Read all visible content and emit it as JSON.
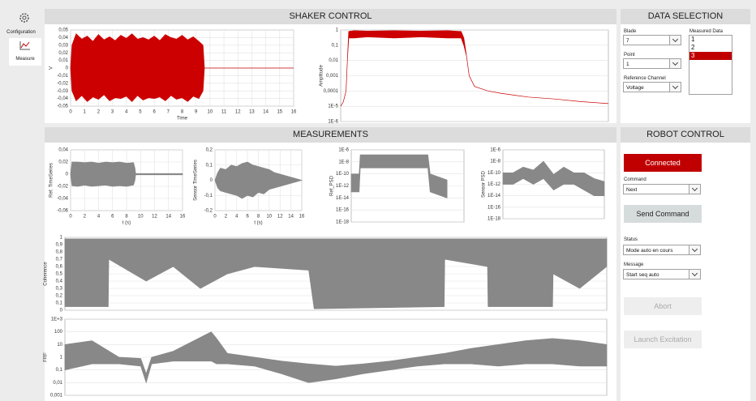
{
  "sidebar": {
    "items": [
      "Configuration",
      "Measure"
    ]
  },
  "shaker": {
    "title": "SHAKER CONTROL"
  },
  "data_selection": {
    "title": "DATA SELECTION",
    "blade": {
      "label": "Blade",
      "value": "7"
    },
    "point": {
      "label": "Point",
      "value": "1"
    },
    "reference_channel": {
      "label": "Reference Channel",
      "value": "Voltage"
    },
    "measured_data": {
      "label": "Measured Data",
      "items": [
        "1",
        "2",
        "3"
      ],
      "selected": 2
    }
  },
  "measurements": {
    "title": "MEASUREMENTS"
  },
  "robot": {
    "title": "ROBOT CONTROL",
    "connected": "Connected",
    "command": {
      "label": "Command",
      "value": "Next"
    },
    "send": "Send Command",
    "status": {
      "label": "Status",
      "value": "Mode auto en cours"
    },
    "message": {
      "label": "Message",
      "value": "Start seq auto"
    },
    "abort": "Abort",
    "launch": "Launch Excitation"
  },
  "plots": [
    {
      "ylabel": "V",
      "xlabel": "Time",
      "color": "#cc0000",
      "log": false,
      "xlim": [
        0,
        16
      ],
      "xticks": [
        0,
        1,
        2,
        3,
        4,
        5,
        6,
        7,
        8,
        9,
        10,
        11,
        12,
        13,
        14,
        15,
        16
      ],
      "ylim": [
        -0.05,
        0.05
      ],
      "yticks": [
        {
          "value": 0.05,
          "label": "0,05"
        },
        {
          "value": 0.04,
          "label": "0,04"
        },
        {
          "value": 0.03,
          "label": "0,03"
        },
        {
          "value": 0.02,
          "label": "0,02"
        },
        {
          "value": 0.01,
          "label": "0,01"
        },
        0,
        {
          "value": -0.01,
          "label": "-0,01"
        },
        {
          "value": -0.02,
          "label": "-0,02"
        },
        {
          "value": -0.03,
          "label": "-0,03"
        },
        {
          "value": -0.04,
          "label": "-0,04"
        },
        {
          "value": -0.05,
          "label": "-0,05"
        }
      ],
      "x": [
        0,
        0.1,
        0.4,
        0.8,
        1.2,
        1.6,
        2,
        2.4,
        2.8,
        3.2,
        3.6,
        4,
        4.4,
        4.8,
        5.2,
        5.6,
        6,
        6.4,
        6.8,
        7.2,
        7.6,
        8,
        8.4,
        8.8,
        9.2,
        9.5,
        9.6,
        16
      ],
      "upper": [
        0,
        0.03,
        0.045,
        0.038,
        0.042,
        0.035,
        0.044,
        0.037,
        0.041,
        0.036,
        0.043,
        0.039,
        0.045,
        0.038,
        0.04,
        0.037,
        0.042,
        0.036,
        0.044,
        0.04,
        0.038,
        0.043,
        0.037,
        0.041,
        0.035,
        0.03,
        0,
        0
      ],
      "lower": [
        0,
        -0.03,
        -0.043,
        -0.036,
        -0.044,
        -0.038,
        -0.041,
        -0.035,
        -0.043,
        -0.039,
        -0.04,
        -0.037,
        -0.044,
        -0.036,
        -0.042,
        -0.039,
        -0.04,
        -0.038,
        -0.043,
        -0.036,
        -0.041,
        -0.039,
        -0.044,
        -0.037,
        -0.04,
        -0.03,
        0,
        0
      ]
    },
    {
      "ylabel": "Amplitude",
      "color": "#cc0000",
      "log": true,
      "xlim": [
        0,
        1
      ],
      "ylim": [
        1e-06,
        1
      ],
      "yticks": [
        1,
        {
          "value": 0.1,
          "label": "0,1"
        },
        {
          "value": 0.01,
          "label": "0,01"
        },
        {
          "value": 0.001,
          "label": "0,001"
        },
        {
          "value": 0.0001,
          "label": "0,0001"
        },
        {
          "value": 1e-05,
          "label": "1E-5"
        },
        {
          "value": 1e-06,
          "label": "1E-6"
        }
      ],
      "x": [
        0,
        0.01,
        0.02,
        0.025,
        0.03,
        0.05,
        0.1,
        0.2,
        0.3,
        0.4,
        0.45,
        0.46,
        0.47,
        0.48,
        0.5,
        0.55,
        0.6,
        0.7,
        0.8,
        0.9,
        1
      ],
      "upper": [
        1e-05,
        2e-05,
        0.0001,
        0.01,
        0.8,
        0.9,
        0.85,
        0.9,
        0.85,
        0.9,
        0.8,
        0.3,
        0.02,
        0.001,
        0.0002,
        0.0001,
        7e-05,
        4e-05,
        3e-05,
        2e-05,
        1.5e-05
      ],
      "lower": [
        1e-05,
        2e-05,
        0.0001,
        0.01,
        0.3,
        0.3,
        0.35,
        0.3,
        0.35,
        0.3,
        0.3,
        0.1,
        0.02,
        0.001,
        0.0002,
        0.0001,
        7e-05,
        4e-05,
        3e-05,
        2e-05,
        1.5e-05
      ]
    },
    {
      "ylabel": "Ref. TimeSeries",
      "xlabel": "t (s)",
      "color": "#888888",
      "log": false,
      "xlim": [
        0,
        16
      ],
      "xticks": [
        0,
        2,
        4,
        6,
        8,
        10,
        12,
        14,
        16
      ],
      "ylim": [
        -0.06,
        0.04
      ],
      "yticks": [
        {
          "value": 0.04,
          "label": "0,04"
        },
        {
          "value": 0.02,
          "label": "0,02"
        },
        0,
        {
          "value": -0.02,
          "label": "-0,02"
        },
        {
          "value": -0.04,
          "label": "-0,04"
        },
        {
          "value": -0.06,
          "label": "-0,06"
        }
      ],
      "x": [
        0,
        0.2,
        1,
        2,
        3,
        4,
        5,
        6,
        7,
        8,
        9,
        9.2,
        9.3,
        16
      ],
      "upper": [
        0,
        0.02,
        0.02,
        0.019,
        0.02,
        0.018,
        0.02,
        0.019,
        0.02,
        0.018,
        0.019,
        0.01,
        0.001,
        0.001
      ],
      "lower": [
        0,
        -0.019,
        -0.02,
        -0.018,
        -0.02,
        -0.019,
        -0.018,
        -0.02,
        -0.019,
        -0.02,
        -0.018,
        -0.01,
        -0.001,
        -0.001
      ]
    },
    {
      "ylabel": "Sensor TimeSeries",
      "xlabel": "t (s)",
      "color": "#888888",
      "log": false,
      "xlim": [
        0,
        16
      ],
      "xticks": [
        0,
        2,
        4,
        6,
        8,
        10,
        12,
        14,
        16
      ],
      "ylim": [
        -0.2,
        0.2
      ],
      "yticks": [
        {
          "value": 0.2,
          "label": "0,2"
        },
        {
          "value": 0.1,
          "label": "0,1"
        },
        0,
        {
          "value": -0.1,
          "label": "-0,1"
        },
        {
          "value": -0.2,
          "label": "-0,2"
        }
      ],
      "x": [
        0,
        0.5,
        1,
        2,
        3,
        4,
        5,
        6,
        7,
        8,
        9,
        10,
        11,
        12,
        13,
        14,
        15,
        16
      ],
      "upper": [
        0,
        0.05,
        0.08,
        0.07,
        0.1,
        0.09,
        0.11,
        0.12,
        0.1,
        0.09,
        0.08,
        0.07,
        0.05,
        0.04,
        0.03,
        0.02,
        0.01,
        0
      ],
      "lower": [
        0,
        -0.05,
        -0.07,
        -0.08,
        -0.09,
        -0.1,
        -0.12,
        -0.1,
        -0.11,
        -0.08,
        -0.09,
        -0.06,
        -0.05,
        -0.04,
        -0.03,
        -0.02,
        -0.01,
        0
      ]
    },
    {
      "ylabel": "Ref_PSD",
      "color": "#888888",
      "log": true,
      "xlim": [
        0,
        1
      ],
      "ylim": [
        1e-18,
        1e-06
      ],
      "yticks": [
        {
          "value": 1e-06,
          "label": "1E-6"
        },
        {
          "value": 1e-08,
          "label": "1E-8"
        },
        {
          "value": 1e-10,
          "label": "1E-10"
        },
        {
          "value": 1e-12,
          "label": "1E-12"
        },
        {
          "value": 1e-14,
          "label": "1E-14"
        },
        {
          "value": 1e-16,
          "label": "1E-16"
        },
        {
          "value": 1e-18,
          "label": "1E-18"
        }
      ],
      "x": [
        0,
        0.07,
        0.08,
        0.4,
        0.68,
        0.7,
        0.85
      ],
      "upper": [
        1e-10,
        1e-10,
        1.5e-07,
        1.5e-07,
        1.5e-07,
        1e-10,
        1e-11
      ],
      "lower": [
        1e-13,
        1e-13,
        1e-09,
        1e-09,
        1e-09,
        1e-13,
        1e-14
      ]
    },
    {
      "ylabel": "Sensor PSD",
      "color": "#888888",
      "log": true,
      "xlim": [
        0,
        1
      ],
      "ylim": [
        1e-18,
        1e-06
      ],
      "yticks": [
        {
          "value": 1e-06,
          "label": "1E-6"
        },
        {
          "value": 1e-08,
          "label": "1E-8"
        },
        {
          "value": 1e-10,
          "label": "1E-10"
        },
        {
          "value": 1e-12,
          "label": "1E-12"
        },
        {
          "value": 1e-14,
          "label": "1E-14"
        },
        {
          "value": 1e-16,
          "label": "1E-16"
        },
        {
          "value": 1e-18,
          "label": "1E-18"
        }
      ],
      "x": [
        0,
        0.1,
        0.2,
        0.3,
        0.4,
        0.5,
        0.6,
        0.7,
        0.8,
        0.9,
        1
      ],
      "upper": [
        1e-10,
        1e-10,
        1e-09,
        3e-10,
        1e-08,
        5e-11,
        1e-09,
        1e-10,
        1e-10,
        1e-11,
        3e-12
      ],
      "lower": [
        1e-12,
        1e-12,
        1e-11,
        1e-12,
        1e-11,
        1e-13,
        1e-12,
        1e-12,
        1e-13,
        1e-14,
        1e-14
      ]
    },
    {
      "ylabel": "Coherence",
      "color": "#888888",
      "log": false,
      "xlim": [
        0,
        1
      ],
      "ylim": [
        0,
        1
      ],
      "yticks": [
        0,
        {
          "value": 0.1,
          "label": "0,1"
        },
        {
          "value": 0.2,
          "label": "0,2"
        },
        {
          "value": 0.3,
          "label": "0,3"
        },
        {
          "value": 0.4,
          "label": "0,4"
        },
        {
          "value": 0.5,
          "label": "0,5"
        },
        {
          "value": 0.6,
          "label": "0,6"
        },
        {
          "value": 0.7,
          "label": "0,7"
        },
        {
          "value": 0.8,
          "label": "0,8"
        },
        {
          "value": 0.9,
          "label": "0,9"
        },
        1
      ],
      "x": [
        0,
        0.08,
        0.081,
        0.15,
        0.2,
        0.25,
        0.3,
        0.35,
        0.45,
        0.46,
        0.7,
        0.701,
        0.78,
        0.781,
        0.9,
        0.901,
        0.95,
        1
      ],
      "upper": [
        0.98,
        0.98,
        0.98,
        0.98,
        0.98,
        0.98,
        0.98,
        0.98,
        0.98,
        0.98,
        0.98,
        0.98,
        0.98,
        0.98,
        0.98,
        0.98,
        0.98,
        0.98
      ],
      "lower": [
        0.05,
        0.05,
        0.7,
        0.4,
        0.6,
        0.3,
        0.5,
        0.6,
        0.55,
        0.02,
        0.05,
        0.7,
        0.6,
        0.05,
        0.05,
        0.5,
        0.3,
        0.6
      ]
    },
    {
      "ylabel": "FRF",
      "color": "#888888",
      "log": true,
      "xlim": [
        0,
        1
      ],
      "ylim": [
        0.001,
        1000
      ],
      "yticks": [
        {
          "value": 1000,
          "label": "1E+3"
        },
        100,
        10,
        1,
        {
          "value": 0.1,
          "label": "0,1"
        },
        {
          "value": 0.01,
          "label": "0,01"
        },
        {
          "value": 0.001,
          "label": "0,001"
        }
      ],
      "x": [
        0,
        0.05,
        0.1,
        0.14,
        0.15,
        0.16,
        0.2,
        0.27,
        0.28,
        0.3,
        0.35,
        0.4,
        0.45,
        0.5,
        0.55,
        0.6,
        0.65,
        0.7,
        0.75,
        0.8,
        0.85,
        0.9,
        0.95,
        1
      ],
      "upper": [
        10,
        20,
        1,
        0.8,
        0.05,
        1,
        3,
        100,
        30,
        2,
        1,
        0.5,
        0.3,
        0.2,
        0.3,
        0.5,
        1,
        2,
        5,
        10,
        20,
        30,
        20,
        10
      ],
      "lower": [
        0.1,
        0.3,
        0.3,
        0.2,
        0.01,
        0.3,
        0.5,
        0.5,
        0.3,
        0.3,
        0.2,
        0.05,
        0.01,
        0.02,
        0.05,
        0.1,
        0.2,
        0.3,
        0.3,
        0.2,
        0.3,
        0.3,
        0.2,
        0.2
      ]
    }
  ]
}
